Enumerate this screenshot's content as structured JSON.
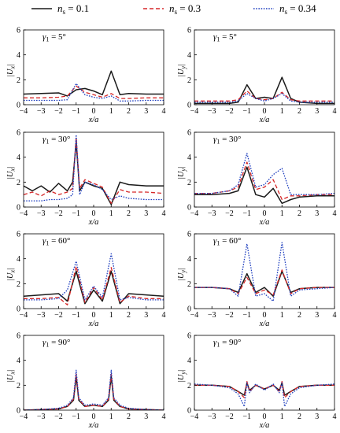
{
  "legend": [
    {
      "name": "n_s = 0.1",
      "sym": "n",
      "sub": "s",
      "val": " = 0.1",
      "color": "#1a1a1a",
      "dash": ""
    },
    {
      "name": "n_s = 0.3",
      "sym": "n",
      "sub": "s",
      "val": " = 0.3",
      "color": "#d62728",
      "dash": "5,3"
    },
    {
      "name": "n_s = 0.34",
      "sym": "n",
      "sub": "s",
      "val": " = 0.34",
      "color": "#1f3fbf",
      "dash": "1.6,1.6"
    }
  ],
  "chart_data": [
    {
      "type": "line",
      "panel": "left-1",
      "annotation": "γ1 = 5°",
      "ylabel": "|Ux|",
      "xlabel": "x/a",
      "xlim": [
        -4,
        4
      ],
      "ylim": [
        0,
        6
      ],
      "x_ticks": [
        -4,
        -3,
        -2,
        -1,
        0,
        1,
        2,
        3,
        4
      ],
      "y_ticks": [
        0,
        2,
        4,
        6
      ],
      "x": [
        -4,
        -3,
        -2,
        -1.5,
        -1,
        -0.5,
        0,
        0.5,
        1,
        1.5,
        2,
        3,
        4
      ],
      "series": [
        {
          "name": "n_s = 0.1",
          "values": [
            0.85,
            0.9,
            0.95,
            0.7,
            1.2,
            1.3,
            1.1,
            0.8,
            2.7,
            0.8,
            0.9,
            0.85,
            0.85
          ]
        },
        {
          "name": "n_s = 0.3",
          "values": [
            0.55,
            0.55,
            0.6,
            0.7,
            1.5,
            1.0,
            0.8,
            0.6,
            0.9,
            0.5,
            0.5,
            0.55,
            0.55
          ]
        },
        {
          "name": "n_s = 0.34",
          "values": [
            0.35,
            0.35,
            0.35,
            0.4,
            1.7,
            0.8,
            0.6,
            0.5,
            0.7,
            0.3,
            0.3,
            0.35,
            0.35
          ]
        }
      ]
    },
    {
      "type": "line",
      "panel": "right-1",
      "annotation": "γ1 = 5°",
      "ylabel": "|Uy|",
      "xlabel": "x/a",
      "xlim": [
        -4,
        4
      ],
      "ylim": [
        0,
        6
      ],
      "x_ticks": [
        -4,
        -3,
        -2,
        -1,
        0,
        1,
        2,
        3,
        4
      ],
      "y_ticks": [
        0,
        2,
        4,
        6
      ],
      "x": [
        -4,
        -3,
        -2,
        -1.5,
        -1,
        -0.5,
        0,
        0.5,
        1,
        1.5,
        2,
        3,
        4
      ],
      "series": [
        {
          "name": "n_s = 0.1",
          "values": [
            0.1,
            0.1,
            0.1,
            0.2,
            1.6,
            0.5,
            0.6,
            0.5,
            2.2,
            0.5,
            0.2,
            0.1,
            0.1
          ]
        },
        {
          "name": "n_s = 0.3",
          "values": [
            0.3,
            0.3,
            0.3,
            0.4,
            1.1,
            0.5,
            0.4,
            0.5,
            1.0,
            0.4,
            0.3,
            0.3,
            0.3
          ]
        },
        {
          "name": "n_s = 0.34",
          "values": [
            0.2,
            0.2,
            0.2,
            0.3,
            0.9,
            0.5,
            0.3,
            0.5,
            0.9,
            0.3,
            0.2,
            0.2,
            0.2
          ]
        }
      ]
    },
    {
      "type": "line",
      "panel": "left-2",
      "annotation": "γ1 = 30°",
      "ylabel": "|Ux|",
      "xlabel": "x/a",
      "xlim": [
        -4,
        4
      ],
      "ylim": [
        0,
        6
      ],
      "x_ticks": [
        -4,
        -3,
        -2,
        -1,
        0,
        1,
        2,
        3,
        4
      ],
      "y_ticks": [
        0,
        2,
        4,
        6
      ],
      "x": [
        -4,
        -3.5,
        -3,
        -2.5,
        -2,
        -1.5,
        -1.2,
        -1,
        -0.8,
        -0.5,
        0,
        0.5,
        1,
        1.5,
        2,
        3,
        4
      ],
      "series": [
        {
          "name": "n_s = 0.1",
          "values": [
            1.7,
            1.3,
            1.7,
            1.2,
            1.9,
            1.3,
            2.0,
            5.2,
            1.3,
            2.0,
            1.7,
            1.5,
            0.2,
            2.0,
            1.8,
            1.7,
            1.7
          ]
        },
        {
          "name": "n_s = 0.3",
          "values": [
            1.0,
            1.2,
            0.9,
            1.3,
            1.0,
            1.2,
            1.5,
            5.6,
            1.5,
            2.2,
            1.9,
            1.6,
            0.3,
            1.4,
            1.2,
            1.2,
            1.1
          ]
        },
        {
          "name": "n_s = 0.34",
          "values": [
            0.5,
            0.5,
            0.5,
            0.6,
            0.6,
            0.7,
            1.0,
            5.8,
            1.0,
            2.0,
            1.8,
            1.4,
            0.6,
            0.9,
            0.7,
            0.6,
            0.6
          ]
        }
      ]
    },
    {
      "type": "line",
      "panel": "right-2",
      "annotation": "γ1 = 30°",
      "ylabel": "|Uy|",
      "xlabel": "x/a",
      "xlim": [
        -4,
        4
      ],
      "ylim": [
        0,
        6
      ],
      "x_ticks": [
        -4,
        -3,
        -2,
        -1,
        0,
        1,
        2,
        3,
        4
      ],
      "y_ticks": [
        0,
        2,
        4,
        6
      ],
      "x": [
        -4,
        -3,
        -2,
        -1.5,
        -1,
        -0.5,
        0,
        0.5,
        1,
        1.5,
        2,
        3,
        4
      ],
      "series": [
        {
          "name": "n_s = 0.1",
          "values": [
            1.0,
            1.0,
            1.1,
            1.3,
            3.2,
            1.0,
            0.8,
            1.5,
            0.3,
            0.6,
            0.8,
            0.9,
            0.9
          ]
        },
        {
          "name": "n_s = 0.3",
          "values": [
            1.1,
            1.1,
            1.3,
            1.6,
            3.6,
            1.4,
            1.6,
            2.2,
            0.6,
            0.9,
            0.9,
            1.0,
            1.0
          ]
        },
        {
          "name": "n_s = 0.34",
          "values": [
            1.1,
            1.1,
            1.3,
            1.8,
            4.3,
            1.6,
            1.8,
            2.6,
            3.1,
            1.0,
            1.0,
            1.0,
            1.1
          ]
        }
      ]
    },
    {
      "type": "line",
      "panel": "left-3",
      "annotation": "γ1 = 60°",
      "ylabel": "|Ux|",
      "xlabel": "x/a",
      "xlim": [
        -4,
        4
      ],
      "ylim": [
        0,
        6
      ],
      "x_ticks": [
        -4,
        -3,
        -2,
        -1,
        0,
        1,
        2,
        3,
        4
      ],
      "y_ticks": [
        0,
        2,
        4,
        6
      ],
      "x": [
        -4,
        -3,
        -2,
        -1.5,
        -1,
        -0.5,
        0,
        0.5,
        1,
        1.5,
        2,
        3,
        4
      ],
      "series": [
        {
          "name": "n_s = 0.1",
          "values": [
            1.0,
            1.1,
            1.2,
            0.6,
            3.0,
            0.4,
            1.5,
            0.6,
            3.0,
            0.4,
            1.2,
            1.1,
            1.0
          ]
        },
        {
          "name": "n_s = 0.3",
          "values": [
            0.8,
            0.8,
            0.9,
            0.3,
            3.4,
            0.5,
            1.7,
            0.7,
            3.3,
            0.5,
            1.0,
            0.8,
            0.8
          ]
        },
        {
          "name": "n_s = 0.34",
          "values": [
            0.7,
            0.7,
            0.8,
            1.5,
            3.8,
            0.7,
            1.8,
            0.9,
            4.4,
            0.7,
            0.9,
            0.7,
            0.7
          ]
        }
      ]
    },
    {
      "type": "line",
      "panel": "right-3",
      "annotation": "γ1 = 60°",
      "ylabel": "|Uy|",
      "xlabel": "x/a",
      "xlim": [
        -4,
        4
      ],
      "ylim": [
        0,
        6
      ],
      "x_ticks": [
        -4,
        -3,
        -2,
        -1,
        0,
        1,
        2,
        3,
        4
      ],
      "y_ticks": [
        0,
        2,
        4,
        6
      ],
      "x": [
        -4,
        -3,
        -2,
        -1.5,
        -1,
        -0.5,
        0,
        0.5,
        1,
        1.5,
        2,
        3,
        4
      ],
      "series": [
        {
          "name": "n_s = 0.1",
          "values": [
            1.7,
            1.7,
            1.6,
            1.3,
            2.8,
            1.3,
            1.7,
            1.0,
            3.0,
            1.3,
            1.6,
            1.7,
            1.7
          ]
        },
        {
          "name": "n_s = 0.3",
          "values": [
            1.7,
            1.7,
            1.6,
            1.2,
            2.5,
            1.2,
            1.5,
            1.1,
            3.1,
            1.2,
            1.6,
            1.7,
            1.7
          ]
        },
        {
          "name": "n_s = 0.34",
          "values": [
            1.7,
            1.7,
            1.6,
            1.0,
            5.2,
            1.0,
            1.2,
            0.6,
            5.3,
            1.0,
            1.5,
            1.6,
            1.7
          ]
        }
      ]
    },
    {
      "type": "line",
      "panel": "left-4",
      "annotation": "γ1 = 90°",
      "ylabel": "|Ux|",
      "xlabel": "x/a",
      "xlim": [
        -4,
        4
      ],
      "ylim": [
        0,
        6
      ],
      "x_ticks": [
        -4,
        -3,
        -2,
        -1,
        0,
        1,
        2,
        3,
        4
      ],
      "y_ticks": [
        0,
        2,
        4,
        6
      ],
      "x": [
        -4,
        -3,
        -2,
        -1.5,
        -1.15,
        -1,
        -0.85,
        -0.5,
        0,
        0.5,
        0.85,
        1,
        1.15,
        1.5,
        2,
        3,
        4
      ],
      "series": [
        {
          "name": "n_s = 0.1",
          "values": [
            0.0,
            0.05,
            0.1,
            0.3,
            0.8,
            2.7,
            0.8,
            0.3,
            0.4,
            0.3,
            0.8,
            2.7,
            0.8,
            0.3,
            0.1,
            0.05,
            0.0
          ]
        },
        {
          "name": "n_s = 0.3",
          "values": [
            0.0,
            0.05,
            0.1,
            0.3,
            0.9,
            2.9,
            0.9,
            0.3,
            0.4,
            0.3,
            0.9,
            2.9,
            0.9,
            0.3,
            0.1,
            0.05,
            0.0
          ]
        },
        {
          "name": "n_s = 0.34",
          "values": [
            0.0,
            0.05,
            0.15,
            0.4,
            1.0,
            3.2,
            1.0,
            0.4,
            0.5,
            0.4,
            1.0,
            3.2,
            1.0,
            0.4,
            0.15,
            0.05,
            0.0
          ]
        }
      ]
    },
    {
      "type": "line",
      "panel": "right-4",
      "annotation": "γ1 = 90°",
      "ylabel": "|Uy|",
      "xlabel": "x/a",
      "xlim": [
        -4,
        4
      ],
      "ylim": [
        0,
        6
      ],
      "x_ticks": [
        -4,
        -3,
        -2,
        -1,
        0,
        1,
        2,
        3,
        4
      ],
      "y_ticks": [
        0,
        2,
        4,
        6
      ],
      "x": [
        -4,
        -3,
        -2,
        -1.5,
        -1.15,
        -1,
        -0.85,
        -0.5,
        0,
        0.5,
        0.85,
        1,
        1.15,
        1.5,
        2,
        3,
        4
      ],
      "series": [
        {
          "name": "n_s = 0.1",
          "values": [
            2.0,
            2.0,
            1.9,
            1.5,
            1.2,
            2.2,
            1.6,
            2.0,
            1.7,
            2.0,
            1.6,
            2.2,
            1.2,
            1.5,
            1.9,
            2.0,
            2.0
          ]
        },
        {
          "name": "n_s = 0.3",
          "values": [
            2.0,
            2.0,
            1.9,
            1.5,
            1.0,
            2.3,
            1.5,
            2.0,
            1.7,
            2.0,
            1.5,
            2.3,
            1.0,
            1.5,
            1.9,
            2.0,
            2.0
          ]
        },
        {
          "name": "n_s = 0.34",
          "values": [
            2.1,
            2.0,
            1.8,
            1.3,
            0.3,
            2.2,
            1.4,
            2.1,
            1.6,
            2.1,
            1.4,
            2.2,
            0.3,
            1.3,
            1.8,
            2.0,
            2.1
          ]
        }
      ]
    }
  ]
}
